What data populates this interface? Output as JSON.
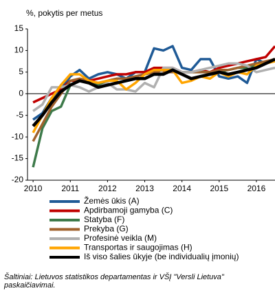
{
  "chart_data": {
    "type": "line",
    "ylabel": "%, pokytis per metus",
    "x": [
      2010,
      2010.25,
      2010.5,
      2010.75,
      2011,
      2011.25,
      2011.5,
      2011.75,
      2012,
      2012.25,
      2012.5,
      2012.75,
      2013,
      2013.25,
      2013.5,
      2013.75,
      2014,
      2014.25,
      2014.5,
      2014.75,
      2015,
      2015.25,
      2015.5,
      2015.75,
      2016,
      2016.25,
      2016.5
    ],
    "xlim": [
      2009.85,
      2016.5
    ],
    "xticks": [
      2010,
      2011,
      2012,
      2013,
      2014,
      2015,
      2016
    ],
    "ylim": [
      -20,
      15
    ],
    "yticks": [
      15,
      10,
      5,
      0,
      -5,
      -10,
      -15,
      -20
    ],
    "series": [
      {
        "name": "Žemės ūkis (A)",
        "color": "#1f5a96",
        "values": [
          -6,
          -4.5,
          -1,
          1,
          4,
          5.5,
          3.5,
          4.5,
          5,
          4.5,
          3.5,
          5,
          5,
          10.5,
          10,
          11,
          6,
          5.5,
          8,
          8,
          4,
          3.5,
          4,
          2.5,
          8,
          7,
          8
        ]
      },
      {
        "name": "Apdirbamoji gamyba (C)",
        "color": "#c00000",
        "values": [
          -2,
          -1,
          0,
          1,
          3,
          3,
          3,
          3.5,
          4,
          4.5,
          4.5,
          5,
          5,
          6,
          6,
          6,
          5,
          5,
          5.5,
          5,
          6,
          6.5,
          7,
          7.5,
          8,
          8.5,
          11
        ]
      },
      {
        "name": "Statyba (F)",
        "color": "#3d7a4a",
        "values": [
          -17,
          -8,
          -4,
          -3,
          2,
          3,
          2.5,
          2,
          3,
          3.5,
          3.5,
          4,
          4.5,
          5,
          5,
          5.5,
          5,
          5,
          5,
          5,
          5,
          5.5,
          6,
          6,
          6.5,
          7,
          8
        ]
      },
      {
        "name": "Prekyba (G)",
        "color": "#a0622d",
        "values": [
          -11,
          -7,
          -3,
          0,
          3,
          3.5,
          3,
          2.5,
          3,
          3.5,
          3.5,
          4,
          4.5,
          5,
          5,
          5,
          5,
          5,
          5,
          5,
          5.5,
          5.5,
          6,
          6.5,
          7,
          7.5,
          8
        ]
      },
      {
        "name": "Profesinė veikla (M)",
        "color": "#b0b0b0",
        "values": [
          -4,
          -2.5,
          1.5,
          1.5,
          2,
          1.5,
          0.5,
          1.5,
          2.5,
          1,
          1,
          0.5,
          2.5,
          1.5,
          6,
          6,
          5,
          5,
          5.5,
          6,
          6.5,
          7,
          7,
          6.5,
          5,
          5.5,
          6
        ]
      },
      {
        "name": "Transportas ir saugojimas (H)",
        "color": "#ffa500",
        "values": [
          -9,
          -5,
          -1,
          2,
          4.5,
          4.5,
          3,
          2.5,
          3,
          3,
          1,
          2.5,
          4.5,
          5.5,
          5.5,
          5.5,
          2.5,
          3,
          4,
          3.5,
          5,
          4,
          5,
          4.5,
          6.5,
          7,
          7.5
        ]
      },
      {
        "name": "Iš viso šalies ūkyje (be individualių įmonių)",
        "color": "#000000",
        "values": [
          -7.5,
          -5,
          -2,
          0.5,
          2,
          3,
          2.5,
          1.5,
          2,
          2.5,
          3,
          3.5,
          3.5,
          4.5,
          4.5,
          5.5,
          4.5,
          3.5,
          4,
          4.5,
          5,
          4.5,
          5,
          5.5,
          6,
          7,
          8
        ]
      }
    ],
    "source": "Šaltiniai: Lietuvos statistikos departamentas ir VŠĮ \"Versli Lietuva\" paskaičiavimai."
  }
}
